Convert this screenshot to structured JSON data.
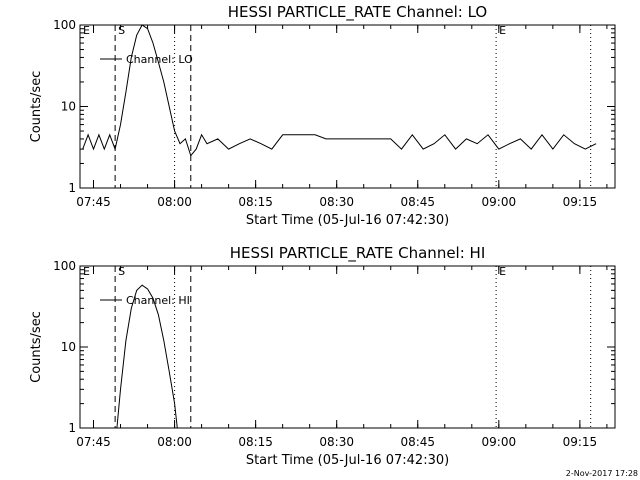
{
  "footer": {
    "stamp": "2-Nov-2017 17:28"
  },
  "chart_data": [
    {
      "type": "line",
      "title": "HESSI PARTICLE_RATE Channel: LO",
      "ylabel": "Counts/sec",
      "xlabel": "Start Time (05-Jul-16 07:42:30)",
      "x_ticks": [
        "07:45",
        "08:00",
        "08:15",
        "08:30",
        "08:45",
        "09:00",
        "09:15"
      ],
      "y_ticks": [
        "1",
        "10",
        "100"
      ],
      "xlim": [
        "07:42:30",
        "09:21:30"
      ],
      "ylim": [
        1,
        100
      ],
      "yscale": "log",
      "legend": {
        "position": "top-left",
        "label": "Channel: LO"
      },
      "markers": [
        {
          "label": "E",
          "time": "07:42:30",
          "style": "none"
        },
        {
          "label": "S",
          "time": "07:49:00",
          "style": "dashed"
        },
        {
          "label": "",
          "time": "08:00:00",
          "style": "dotted"
        },
        {
          "label": "",
          "time": "08:03:00",
          "style": "dashed"
        },
        {
          "label": "E",
          "time": "08:59:30",
          "style": "dotted"
        },
        {
          "label": "",
          "time": "09:17:00",
          "style": "dotted"
        }
      ],
      "series": [
        {
          "name": "Channel: LO",
          "x": [
            "07:43:00",
            "07:44:00",
            "07:45:00",
            "07:46:00",
            "07:47:00",
            "07:48:00",
            "07:49:00",
            "07:50:00",
            "07:51:00",
            "07:52:00",
            "07:53:00",
            "07:54:00",
            "07:55:00",
            "07:56:00",
            "07:57:00",
            "07:58:00",
            "07:59:00",
            "08:00:00",
            "08:01:00",
            "08:02:00",
            "08:03:00",
            "08:04:00",
            "08:05:00",
            "08:06:00",
            "08:08:00",
            "08:10:00",
            "08:12:00",
            "08:14:00",
            "08:16:00",
            "08:18:00",
            "08:20:00",
            "08:22:00",
            "08:24:00",
            "08:26:00",
            "08:28:00",
            "08:30:00",
            "08:32:00",
            "08:34:00",
            "08:36:00",
            "08:38:00",
            "08:40:00",
            "08:42:00",
            "08:44:00",
            "08:46:00",
            "08:48:00",
            "08:50:00",
            "08:52:00",
            "08:54:00",
            "08:56:00",
            "08:58:00",
            "09:00:00",
            "09:02:00",
            "09:04:00",
            "09:06:00",
            "09:08:00",
            "09:10:00",
            "09:12:00",
            "09:14:00",
            "09:16:00",
            "09:18:00"
          ],
          "y": [
            3,
            4.5,
            3,
            4.5,
            3,
            4.5,
            3,
            6,
            15,
            40,
            75,
            100,
            90,
            60,
            35,
            20,
            10,
            5,
            3.5,
            4,
            2.5,
            3,
            4.5,
            3.5,
            4,
            3,
            3.5,
            4,
            3.5,
            3,
            4.5,
            4.5,
            4.5,
            4.5,
            4,
            4,
            4,
            4,
            4,
            4,
            4,
            3,
            4.5,
            3,
            3.5,
            4.5,
            3,
            4,
            3.5,
            4.5,
            3,
            3.5,
            4,
            3,
            4.5,
            3,
            4.5,
            3.5,
            3,
            3.5
          ]
        }
      ]
    },
    {
      "type": "line",
      "title": "HESSI PARTICLE_RATE Channel: HI",
      "ylabel": "Counts/sec",
      "xlabel": "Start Time (05-Jul-16 07:42:30)",
      "x_ticks": [
        "07:45",
        "08:00",
        "08:15",
        "08:30",
        "08:45",
        "09:00",
        "09:15"
      ],
      "y_ticks": [
        "1",
        "10",
        "100"
      ],
      "xlim": [
        "07:42:30",
        "09:21:30"
      ],
      "ylim": [
        1,
        100
      ],
      "yscale": "log",
      "legend": {
        "position": "top-left",
        "label": "Channel: HI"
      },
      "markers": [
        {
          "label": "E",
          "time": "07:42:30",
          "style": "none"
        },
        {
          "label": "S",
          "time": "07:49:00",
          "style": "dashed"
        },
        {
          "label": "",
          "time": "08:00:00",
          "style": "dotted"
        },
        {
          "label": "",
          "time": "08:03:00",
          "style": "dashed"
        },
        {
          "label": "E",
          "time": "08:59:30",
          "style": "dotted"
        },
        {
          "label": "",
          "time": "09:17:00",
          "style": "dotted"
        }
      ],
      "series": [
        {
          "name": "Channel: HI",
          "x": [
            "07:49:20",
            "07:50:00",
            "07:51:00",
            "07:52:00",
            "07:53:00",
            "07:54:00",
            "07:55:00",
            "07:56:00",
            "07:57:00",
            "07:58:00",
            "07:59:00",
            "08:00:00",
            "08:00:30"
          ],
          "y": [
            1,
            3,
            12,
            30,
            50,
            58,
            52,
            40,
            25,
            12,
            5,
            2,
            1
          ]
        }
      ]
    }
  ]
}
